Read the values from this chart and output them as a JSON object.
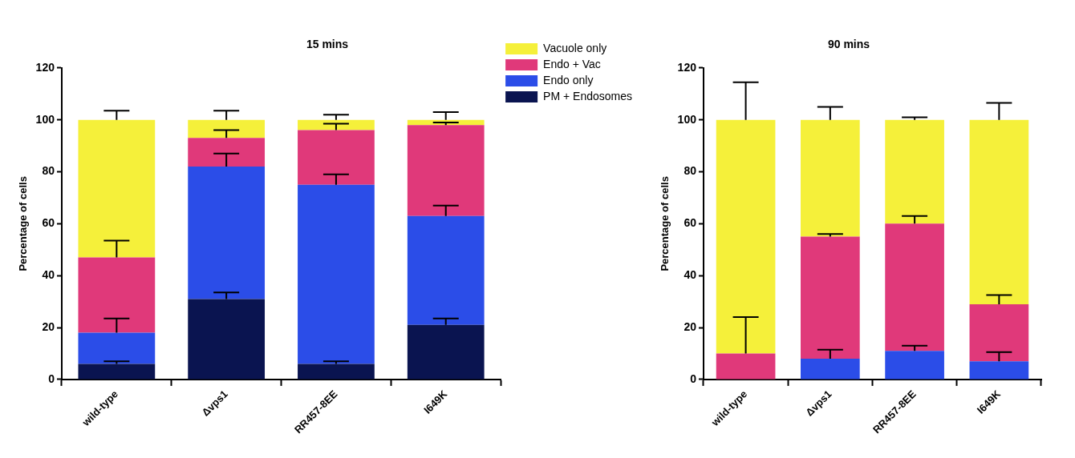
{
  "chart_data": [
    {
      "type": "bar",
      "title": "15 mins",
      "ylabel": "Percentage of cells",
      "categories": [
        "wild-type",
        "Δvps1",
        "RR457-8EE",
        "I649K"
      ],
      "stacked": true,
      "ylim": [
        0,
        120
      ],
      "yticks": [
        0,
        20,
        40,
        60,
        80,
        100,
        120
      ],
      "grid": false,
      "legend": "right",
      "series": [
        {
          "name": "PM + Endosomes",
          "color": "#0a1450",
          "values": [
            6,
            31,
            6,
            21
          ],
          "errors": [
            [
              6,
              7
            ],
            [
              31,
              33.5
            ],
            [
              6,
              7
            ],
            [
              21,
              23.5
            ]
          ]
        },
        {
          "name": "Endo only",
          "color": "#2b4de8",
          "values": [
            12,
            51,
            69,
            42
          ],
          "errors": [
            [
              18,
              23.5
            ],
            [
              82,
              87
            ],
            [
              75,
              79
            ],
            [
              63,
              67
            ]
          ]
        },
        {
          "name": "Endo + Vac",
          "color": "#e0397a",
          "values": [
            29,
            11,
            21,
            35
          ],
          "errors": [
            [
              47,
              53.5
            ],
            [
              93,
              96
            ],
            [
              96,
              98.5
            ],
            [
              98,
              99
            ]
          ]
        },
        {
          "name": "Vacuole only",
          "color": "#f5f03a",
          "values": [
            53,
            7,
            4,
            2
          ],
          "errors": [
            [
              100,
              103.5
            ],
            [
              100,
              103.5
            ],
            [
              100,
              102
            ],
            [
              100,
              103
            ]
          ]
        }
      ]
    },
    {
      "type": "bar",
      "title": "90 mins",
      "ylabel": "Percentage of cells",
      "categories": [
        "wild-type",
        "Δvps1",
        "RR457-8EE",
        "I649K"
      ],
      "stacked": true,
      "ylim": [
        0,
        120
      ],
      "yticks": [
        0,
        20,
        40,
        60,
        80,
        100,
        120
      ],
      "grid": false,
      "series": [
        {
          "color": "#2b4de8",
          "values": [
            0,
            8,
            11,
            7
          ],
          "errors": [
            null,
            [
              8,
              11.5
            ],
            [
              11,
              13
            ],
            [
              7,
              10.5
            ]
          ]
        },
        {
          "color": "#e0397a",
          "values": [
            10,
            47,
            49,
            22
          ],
          "errors": [
            [
              10,
              24
            ],
            [
              55,
              56
            ],
            [
              60,
              63
            ],
            [
              29,
              32.5
            ]
          ]
        },
        {
          "color": "#f5f03a",
          "values": [
            90,
            45,
            40,
            71
          ],
          "errors": [
            [
              100,
              114.5
            ],
            [
              100,
              105
            ],
            [
              100,
              101
            ],
            [
              100,
              106.5
            ]
          ]
        }
      ]
    }
  ]
}
